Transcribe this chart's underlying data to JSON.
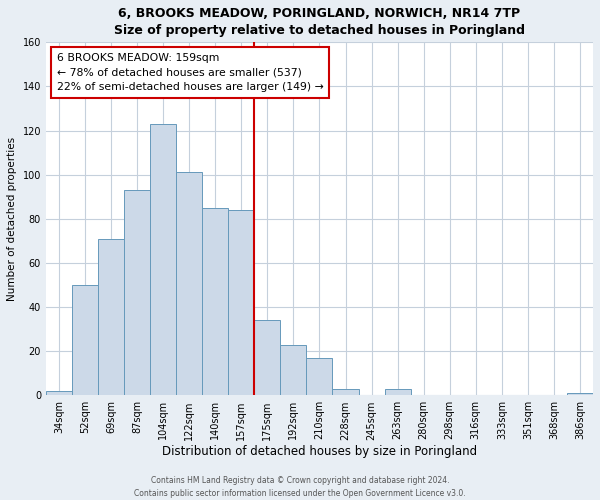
{
  "title": "6, BROOKS MEADOW, PORINGLAND, NORWICH, NR14 7TP",
  "subtitle": "Size of property relative to detached houses in Poringland",
  "xlabel": "Distribution of detached houses by size in Poringland",
  "ylabel": "Number of detached properties",
  "bar_labels": [
    "34sqm",
    "52sqm",
    "69sqm",
    "87sqm",
    "104sqm",
    "122sqm",
    "140sqm",
    "157sqm",
    "175sqm",
    "192sqm",
    "210sqm",
    "228sqm",
    "245sqm",
    "263sqm",
    "280sqm",
    "298sqm",
    "316sqm",
    "333sqm",
    "351sqm",
    "368sqm",
    "386sqm"
  ],
  "bar_heights": [
    2,
    50,
    71,
    93,
    123,
    101,
    85,
    84,
    34,
    23,
    17,
    3,
    0,
    3,
    0,
    0,
    0,
    0,
    0,
    0,
    1
  ],
  "bar_color": "#ccd9e8",
  "bar_edge_color": "#6699bb",
  "vline_color": "#cc0000",
  "vline_idx": 7,
  "annotation_title": "6 BROOKS MEADOW: 159sqm",
  "annotation_line1": "← 78% of detached houses are smaller (537)",
  "annotation_line2": "22% of semi-detached houses are larger (149) →",
  "annotation_box_color": "#ffffff",
  "annotation_box_edge": "#cc0000",
  "ylim": [
    0,
    160
  ],
  "yticks": [
    0,
    20,
    40,
    60,
    80,
    100,
    120,
    140,
    160
  ],
  "footer1": "Contains HM Land Registry data © Crown copyright and database right 2024.",
  "footer2": "Contains public sector information licensed under the Open Government Licence v3.0.",
  "bg_color": "#e8eef4",
  "plot_bg_color": "#ffffff",
  "grid_color": "#c5d0dc",
  "title_fontsize": 9,
  "subtitle_fontsize": 8.5,
  "ylabel_fontsize": 7.5,
  "xlabel_fontsize": 8.5,
  "tick_fontsize": 7,
  "annot_fontsize": 7.8
}
